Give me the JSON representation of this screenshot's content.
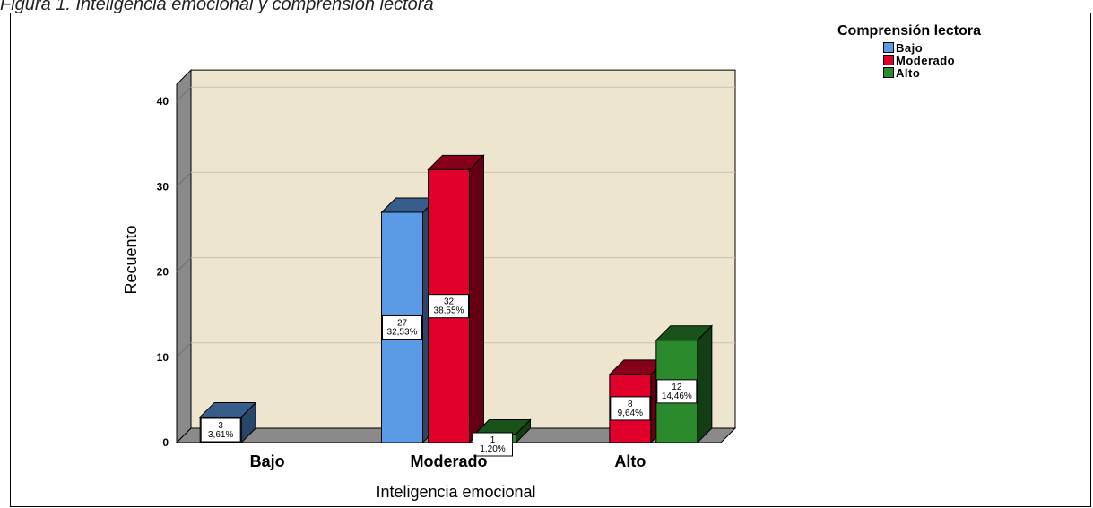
{
  "caption": "Figura 1. Inteligencia emocional y comprensión lectora",
  "legend": {
    "title": "Comprensión lectora",
    "items": [
      {
        "label": "Bajo",
        "color": "#5b9be6"
      },
      {
        "label": "Moderado",
        "color": "#e0002b"
      },
      {
        "label": "Alto",
        "color": "#2b8a2b"
      }
    ]
  },
  "chart_data": {
    "type": "bar",
    "title": "",
    "xlabel": "Inteligencia emocional",
    "ylabel": "Recuento",
    "ylim": [
      0,
      42
    ],
    "yticks": [
      0,
      10,
      20,
      30,
      40
    ],
    "grid": true,
    "legend_position": "top-right",
    "categories": [
      "Bajo",
      "Moderado",
      "Alto"
    ],
    "series": [
      {
        "name": "Bajo",
        "values": [
          3,
          27,
          0
        ],
        "labels": [
          "3\n3,61%",
          "27\n32,53%",
          ""
        ]
      },
      {
        "name": "Moderado",
        "values": [
          0,
          32,
          8
        ],
        "labels": [
          "",
          "32\n38,55%",
          "8\n9,64%"
        ]
      },
      {
        "name": "Alto",
        "values": [
          0,
          1,
          12
        ],
        "labels": [
          "",
          "1\n1,20%",
          "12\n14,46%"
        ]
      }
    ]
  }
}
